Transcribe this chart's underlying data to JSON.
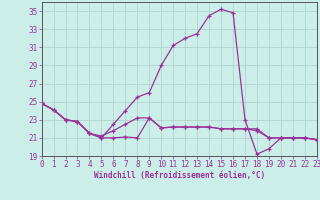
{
  "xlabel": "Windchill (Refroidissement éolien,°C)",
  "bg_color": "#cceee8",
  "grid_color": "#aacccc",
  "line_color": "#993399",
  "xlim": [
    0,
    23
  ],
  "ylim": [
    19,
    36
  ],
  "xticks": [
    0,
    1,
    2,
    3,
    4,
    5,
    6,
    7,
    8,
    9,
    10,
    11,
    12,
    13,
    14,
    15,
    16,
    17,
    18,
    19,
    20,
    21,
    22,
    23
  ],
  "yticks": [
    19,
    21,
    23,
    25,
    27,
    29,
    31,
    33,
    35
  ],
  "line1_x": [
    0,
    1,
    2,
    3,
    4,
    5,
    6,
    7,
    8,
    9,
    10,
    11,
    12,
    13,
    14,
    15,
    16,
    17,
    18,
    19,
    20,
    21,
    22,
    23
  ],
  "line1_y": [
    24.8,
    24.1,
    23.0,
    22.8,
    21.5,
    21.0,
    21.0,
    21.1,
    21.0,
    23.2,
    22.1,
    22.2,
    22.2,
    22.2,
    22.2,
    22.0,
    22.0,
    22.0,
    22.0,
    21.0,
    21.0,
    21.0,
    21.0,
    20.8
  ],
  "line2_x": [
    0,
    1,
    2,
    3,
    4,
    5,
    6,
    7,
    8,
    9,
    10,
    11,
    12,
    13,
    14,
    15,
    16,
    17,
    18,
    19,
    20,
    21,
    22,
    23
  ],
  "line2_y": [
    24.8,
    24.1,
    23.0,
    22.8,
    21.5,
    21.0,
    22.5,
    24.0,
    25.5,
    26.0,
    29.0,
    31.2,
    32.0,
    32.5,
    34.5,
    35.2,
    34.8,
    23.0,
    19.2,
    19.8,
    21.0,
    21.0,
    21.0,
    20.8
  ],
  "line3_x": [
    0,
    1,
    2,
    3,
    4,
    5,
    6,
    7,
    8,
    9,
    10,
    11,
    12,
    13,
    14,
    15,
    16,
    17,
    18,
    19,
    20,
    21,
    22,
    23
  ],
  "line3_y": [
    24.8,
    24.1,
    23.0,
    22.8,
    21.5,
    21.2,
    21.8,
    22.5,
    23.2,
    23.2,
    22.1,
    22.2,
    22.2,
    22.2,
    22.2,
    22.0,
    22.0,
    22.0,
    21.8,
    21.0,
    21.0,
    21.0,
    21.0,
    20.8
  ]
}
